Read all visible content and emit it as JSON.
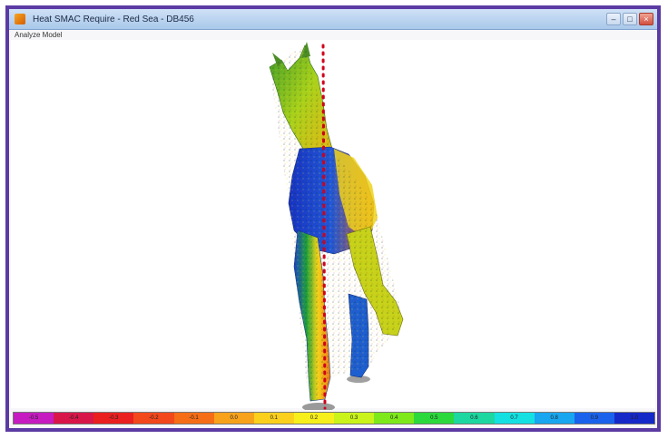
{
  "window": {
    "title": "Heat SMAC Require - Red Sea - DB456",
    "minimize_label": "–",
    "maximize_label": "□",
    "close_label": "×"
  },
  "menu": {
    "items": [
      "Analyze Model"
    ]
  },
  "viewport": {
    "model": "horse-mesh",
    "overlay": "centerline-dotted-red"
  },
  "colorbar": {
    "labels": [
      "-0.5",
      "-0.4",
      "-0.3",
      "-0.2",
      "-0.1",
      "0.0",
      "0.1",
      "0.2",
      "0.3",
      "0.4",
      "0.5",
      "0.6",
      "0.7",
      "0.8",
      "0.9",
      "1.0"
    ],
    "colors": [
      "#c51bc0",
      "#d8164a",
      "#ea1f1f",
      "#f2481c",
      "#f56d16",
      "#f8a21c",
      "#fbd01c",
      "#f7ef1b",
      "#c9f31a",
      "#7de91b",
      "#2bd93c",
      "#1cd79f",
      "#14e0e2",
      "#17a6ef",
      "#1a62ec",
      "#1529c8"
    ]
  }
}
